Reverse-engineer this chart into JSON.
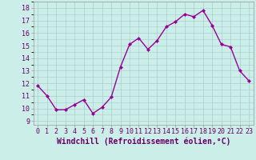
{
  "x": [
    0,
    1,
    2,
    3,
    4,
    5,
    6,
    7,
    8,
    9,
    10,
    11,
    12,
    13,
    14,
    15,
    16,
    17,
    18,
    19,
    20,
    21,
    22,
    23
  ],
  "y": [
    11.8,
    11.0,
    9.9,
    9.9,
    10.3,
    10.7,
    9.6,
    10.1,
    10.9,
    13.3,
    15.1,
    15.6,
    14.7,
    15.4,
    16.5,
    16.9,
    17.5,
    17.3,
    17.8,
    16.6,
    15.1,
    14.9,
    13.0,
    12.2
  ],
  "line_color": "#990099",
  "marker": "D",
  "marker_size": 2,
  "bg_color": "#cceee8",
  "grid_color": "#aacccc",
  "xlabel": "Windchill (Refroidissement éolien,°C)",
  "xlim": [
    -0.5,
    23.5
  ],
  "ylim": [
    8.7,
    18.5
  ],
  "xticks": [
    0,
    1,
    2,
    3,
    4,
    5,
    6,
    7,
    8,
    9,
    10,
    11,
    12,
    13,
    14,
    15,
    16,
    17,
    18,
    19,
    20,
    21,
    22,
    23
  ],
  "yticks": [
    9,
    10,
    11,
    12,
    13,
    14,
    15,
    16,
    17,
    18
  ],
  "tick_fontsize": 6,
  "xlabel_fontsize": 7,
  "line_width": 1.0,
  "text_color": "#660066"
}
